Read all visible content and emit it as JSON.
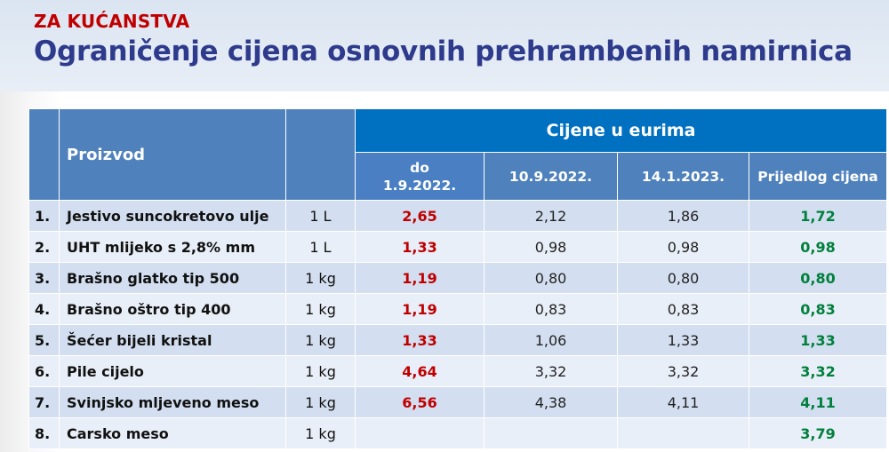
{
  "header": {
    "kicker": "ZA KUĆANSTVA",
    "title": "Ograničenje cijena osnovnih prehrambenih namirnica"
  },
  "table": {
    "col_product": "Proizvod",
    "group_label": "Cijene u eurima",
    "price_cols": [
      "do 1.9.2022.",
      "10.9.2022.",
      "14.1.2023.",
      "Prijedlog cijena"
    ],
    "price_col_1_line1": "do",
    "price_col_1_line2": "1.9.2022.",
    "colors": {
      "old_price": "#c00000",
      "proposed_price": "#00803c",
      "header_dark": "#0070c0",
      "header": "#4f81bd"
    },
    "rows": [
      {
        "num": "1.",
        "product": "Jestivo suncokretovo ulje",
        "unit": "1 L",
        "p1": "2,65",
        "p2": "2,12",
        "p3": "1,86",
        "p4": "1,72"
      },
      {
        "num": "2.",
        "product": "UHT mlijeko s 2,8% mm",
        "unit": "1 L",
        "p1": "1,33",
        "p2": "0,98",
        "p3": "0,98",
        "p4": "0,98"
      },
      {
        "num": "3.",
        "product": "Brašno glatko tip 500",
        "unit": "1 kg",
        "p1": "1,19",
        "p2": "0,80",
        "p3": "0,80",
        "p4": "0,80"
      },
      {
        "num": "4.",
        "product": "Brašno oštro tip 400",
        "unit": "1 kg",
        "p1": "1,19",
        "p2": "0,83",
        "p3": "0,83",
        "p4": "0,83"
      },
      {
        "num": "5.",
        "product": "Šećer bijeli kristal",
        "unit": "1 kg",
        "p1": "1,33",
        "p2": "1,06",
        "p3": "1,33",
        "p4": "1,33"
      },
      {
        "num": "6.",
        "product": "Pile cijelo",
        "unit": "1 kg",
        "p1": "4,64",
        "p2": "3,32",
        "p3": "3,32",
        "p4": "3,32"
      },
      {
        "num": "7.",
        "product": "Svinjsko mljeveno meso",
        "unit": "1 kg",
        "p1": "6,56",
        "p2": "4,38",
        "p3": "4,11",
        "p4": "4,11"
      },
      {
        "num": "8.",
        "product": "Carsko meso",
        "unit": "1 kg",
        "p1": "",
        "p2": "",
        "p3": "",
        "p4": "3,79"
      }
    ]
  }
}
